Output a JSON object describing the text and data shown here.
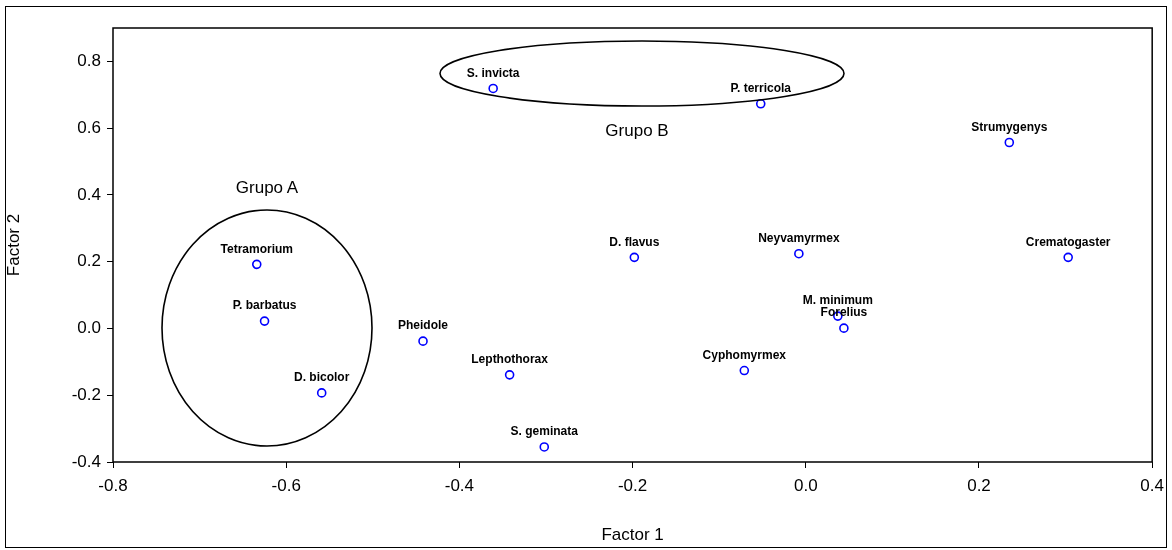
{
  "chart_data": {
    "type": "scatter",
    "xlabel": "Factor 1",
    "ylabel": "Factor 2",
    "x": [
      -0.361,
      -0.052,
      0.235,
      -0.634,
      -0.198,
      -0.008,
      0.303,
      -0.625,
      0.037,
      0.044,
      -0.442,
      -0.559,
      -0.342,
      -0.071,
      -0.302
    ],
    "series": [
      {
        "color": "#0000ff",
        "values": [
          0.719,
          0.673,
          0.557,
          0.192,
          0.213,
          0.224,
          0.213,
          0.022,
          0.037,
          0.001,
          -0.038,
          -0.193,
          -0.139,
          -0.126,
          -0.355
        ]
      }
    ],
    "marker": "circle",
    "grid": false,
    "legend": false,
    "xlim": [
      -0.8,
      0.4
    ],
    "ylim": [
      -0.4,
      0.9
    ],
    "xticks": [
      {
        "value": -0.8,
        "label": "-0.8"
      },
      {
        "value": -0.6,
        "label": "-0.6"
      },
      {
        "value": -0.4,
        "label": "-0.4"
      },
      {
        "value": -0.2,
        "label": "-0.2"
      },
      {
        "value": 0,
        "label": "0.0"
      },
      {
        "value": 0.2,
        "label": "0.2"
      },
      {
        "value": 0.4,
        "label": "0.4"
      }
    ],
    "yticks": [
      {
        "value": -0.4,
        "label": "-0.4"
      },
      {
        "value": -0.2,
        "label": "-0.2"
      },
      {
        "value": 0,
        "label": "0.0"
      },
      {
        "value": 0.2,
        "label": "0.2"
      },
      {
        "value": 0.4,
        "label": "0.4"
      },
      {
        "value": 0.6,
        "label": "0.6"
      },
      {
        "value": 0.8,
        "label": "0.8"
      }
    ],
    "annotations": [
      {
        "text": "S. invicta",
        "x": -0.361,
        "y": 0.719
      },
      {
        "text": "P. terricola",
        "x": -0.052,
        "y": 0.673
      },
      {
        "text": "Strumygenys",
        "x": 0.235,
        "y": 0.557
      },
      {
        "text": "Tetramorium",
        "x": -0.634,
        "y": 0.192
      },
      {
        "text": "D. flavus",
        "x": -0.198,
        "y": 0.213
      },
      {
        "text": "Neyvamyrmex",
        "x": -0.008,
        "y": 0.224
      },
      {
        "text": "Crematogaster",
        "x": 0.303,
        "y": 0.213
      },
      {
        "text": "P. barbatus",
        "x": -0.625,
        "y": 0.022
      },
      {
        "text": "M. minimum",
        "x": 0.037,
        "y": 0.037
      },
      {
        "text": "Forelius",
        "x": 0.044,
        "y": 0.001
      },
      {
        "text": "Pheidole",
        "x": -0.442,
        "y": -0.038
      },
      {
        "text": "D. bicolor",
        "x": -0.559,
        "y": -0.193
      },
      {
        "text": "Lepthothorax",
        "x": -0.342,
        "y": -0.139
      },
      {
        "text": "Cyphomyrmex",
        "x": -0.071,
        "y": -0.126
      },
      {
        "text": "S. geminata",
        "x": -0.302,
        "y": -0.355
      },
      "Grupo A",
      "Grupo B"
    ]
  }
}
